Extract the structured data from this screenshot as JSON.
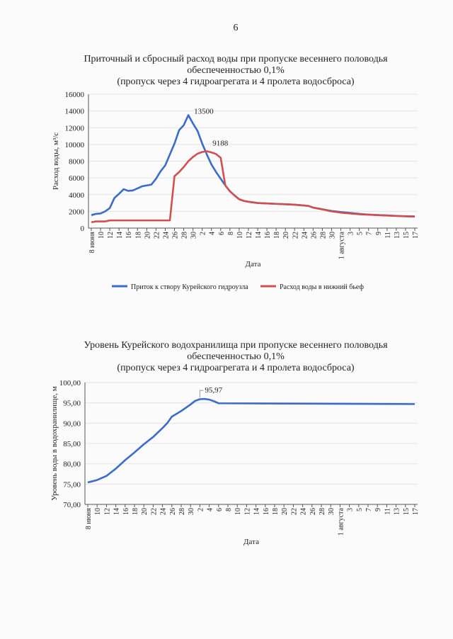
{
  "page_number": "6",
  "chart_data": [
    {
      "type": "line",
      "title": [
        "Приточный и сбросный расход воды при пропуске весеннего половодья",
        "обеспеченностью 0,1%",
        "(пропуск через 4 гидроагрегата и 4 пролета водосброса)"
      ],
      "xlabel": "Дата",
      "ylabel": "Расход воды, м³/с",
      "ylim": [
        0,
        16000
      ],
      "yticks": [
        "0",
        "2000",
        "4000",
        "6000",
        "8000",
        "10000",
        "12000",
        "14000",
        "16000"
      ],
      "xticks": [
        "8 июня",
        "10",
        "12",
        "14",
        "16",
        "18",
        "20",
        "22",
        "24",
        "26",
        "28",
        "30",
        "2",
        "4",
        "6",
        "8",
        "10",
        "12",
        "14",
        "16",
        "18",
        "20",
        "22",
        "24",
        "26",
        "28",
        "30",
        "1 августа",
        "3",
        "5",
        "7",
        "9",
        "11",
        "13",
        "15",
        "17"
      ],
      "grid": true,
      "legend": "bottom",
      "series": [
        {
          "name": "Приток к створу Курейского гидроузла",
          "color": "#3a6cc8",
          "points": [
            [
              "08.06",
              1550
            ],
            [
              "09.06",
              1700
            ],
            [
              "10.06",
              1750
            ],
            [
              "11.06",
              2000
            ],
            [
              "12.06",
              2400
            ],
            [
              "13.06",
              3600
            ],
            [
              "14.06",
              4100
            ],
            [
              "15.06",
              4650
            ],
            [
              "16.06",
              4450
            ],
            [
              "17.06",
              4500
            ],
            [
              "18.06",
              4750
            ],
            [
              "19.06",
              5000
            ],
            [
              "20.06",
              5100
            ],
            [
              "21.06",
              5200
            ],
            [
              "22.06",
              5900
            ],
            [
              "23.06",
              6800
            ],
            [
              "24.06",
              7500
            ],
            [
              "25.06",
              8800
            ],
            [
              "26.06",
              10100
            ],
            [
              "27.06",
              11700
            ],
            [
              "28.06",
              12300
            ],
            [
              "29.06",
              13500
            ],
            [
              "30.06",
              12500
            ],
            [
              "01.07",
              11600
            ],
            [
              "02.07",
              10100
            ],
            [
              "03.07",
              8800
            ],
            [
              "04.07",
              7600
            ],
            [
              "05.07",
              6700
            ],
            [
              "06.07",
              5900
            ],
            [
              "07.07",
              5100
            ],
            [
              "08.07",
              4400
            ],
            [
              "09.07",
              3900
            ],
            [
              "10.07",
              3450
            ],
            [
              "11.07",
              3250
            ],
            [
              "12.07",
              3150
            ],
            [
              "14.07",
              3000
            ],
            [
              "16.07",
              2950
            ],
            [
              "18.07",
              2900
            ],
            [
              "20.07",
              2850
            ],
            [
              "22.07",
              2800
            ],
            [
              "24.07",
              2700
            ],
            [
              "25.07",
              2650
            ],
            [
              "26.07",
              2450
            ],
            [
              "28.07",
              2250
            ],
            [
              "30.07",
              2050
            ],
            [
              "01.08",
              1920
            ],
            [
              "03.08",
              1820
            ],
            [
              "05.08",
              1700
            ],
            [
              "07.08",
              1620
            ],
            [
              "09.08",
              1560
            ],
            [
              "11.08",
              1520
            ],
            [
              "13.08",
              1460
            ],
            [
              "15.08",
              1420
            ],
            [
              "17.08",
              1400
            ]
          ]
        },
        {
          "name": "Расход воды в нижний бьеф",
          "color": "#d05050",
          "points": [
            [
              "08.06",
              700
            ],
            [
              "09.06",
              800
            ],
            [
              "11.06",
              800
            ],
            [
              "12.06",
              920
            ],
            [
              "25.06",
              920
            ],
            [
              "26.06",
              6200
            ],
            [
              "27.06",
              6700
            ],
            [
              "28.06",
              7300
            ],
            [
              "29.06",
              8000
            ],
            [
              "30.06",
              8500
            ],
            [
              "01.07",
              8900
            ],
            [
              "02.07",
              9100
            ],
            [
              "03.07",
              9188
            ],
            [
              "04.07",
              9050
            ],
            [
              "05.07",
              8850
            ],
            [
              "06.07",
              8400
            ],
            [
              "07.07",
              5100
            ],
            [
              "08.07",
              4400
            ],
            [
              "09.07",
              3900
            ],
            [
              "10.07",
              3450
            ],
            [
              "11.07",
              3250
            ],
            [
              "12.07",
              3150
            ],
            [
              "14.07",
              3000
            ],
            [
              "16.07",
              2950
            ],
            [
              "18.07",
              2900
            ],
            [
              "20.07",
              2850
            ],
            [
              "22.07",
              2800
            ],
            [
              "24.07",
              2700
            ],
            [
              "25.07",
              2650
            ],
            [
              "26.07",
              2450
            ],
            [
              "28.07",
              2250
            ],
            [
              "30.07",
              2000
            ],
            [
              "01.08",
              1850
            ],
            [
              "03.08",
              1750
            ],
            [
              "05.08",
              1650
            ],
            [
              "07.08",
              1600
            ],
            [
              "09.08",
              1550
            ],
            [
              "11.08",
              1500
            ],
            [
              "13.08",
              1450
            ],
            [
              "15.08",
              1400
            ],
            [
              "17.08",
              1380
            ]
          ]
        }
      ],
      "annotations": [
        {
          "text": "13500",
          "x": "29.06",
          "y": 13500
        },
        {
          "text": "9188",
          "x": "03.07",
          "y": 9188
        }
      ]
    },
    {
      "type": "line",
      "title": [
        "Уровень Курейского водохранилища при пропуске весеннего половодья",
        "обеспеченностью 0,1%",
        "(пропуск через 4 гидроагрегата и 4 пролета водосброса)"
      ],
      "xlabel": "Дата",
      "ylabel": "Уровень воды в водохранилище, м",
      "ylim": [
        70,
        100
      ],
      "yticks": [
        "70,00",
        "75,00",
        "80,00",
        "85,00",
        "90,00",
        "95,00",
        "100,00"
      ],
      "xticks": [
        "8 июня",
        "10",
        "12",
        "14",
        "16",
        "18",
        "20",
        "22",
        "24",
        "26",
        "28",
        "30",
        "2",
        "4",
        "6",
        "8",
        "10",
        "12",
        "14",
        "16",
        "18",
        "20",
        "22",
        "24",
        "26",
        "28",
        "30",
        "1 августа",
        "3",
        "5",
        "7",
        "9",
        "11",
        "13",
        "15",
        "17"
      ],
      "grid": true,
      "series": [
        {
          "color": "#3a6cc8",
          "points": [
            [
              "08.06",
              75.4
            ],
            [
              "10.06",
              76.0
            ],
            [
              "12.06",
              77.0
            ],
            [
              "14.06",
              78.8
            ],
            [
              "16.06",
              80.9
            ],
            [
              "18.06",
              82.8
            ],
            [
              "20.06",
              84.8
            ],
            [
              "22.06",
              86.6
            ],
            [
              "24.06",
              88.8
            ],
            [
              "25.06",
              90.0
            ],
            [
              "26.06",
              91.6
            ],
            [
              "28.06",
              93.0
            ],
            [
              "30.06",
              94.6
            ],
            [
              "01.07",
              95.5
            ],
            [
              "02.07",
              95.9
            ],
            [
              "03.07",
              95.97
            ],
            [
              "04.07",
              95.8
            ],
            [
              "05.07",
              95.4
            ],
            [
              "06.07",
              94.9
            ],
            [
              "17.08",
              94.7
            ]
          ]
        }
      ],
      "annotations": [
        {
          "text": "95,97",
          "x": "02.07",
          "y": 95.97
        }
      ]
    }
  ]
}
